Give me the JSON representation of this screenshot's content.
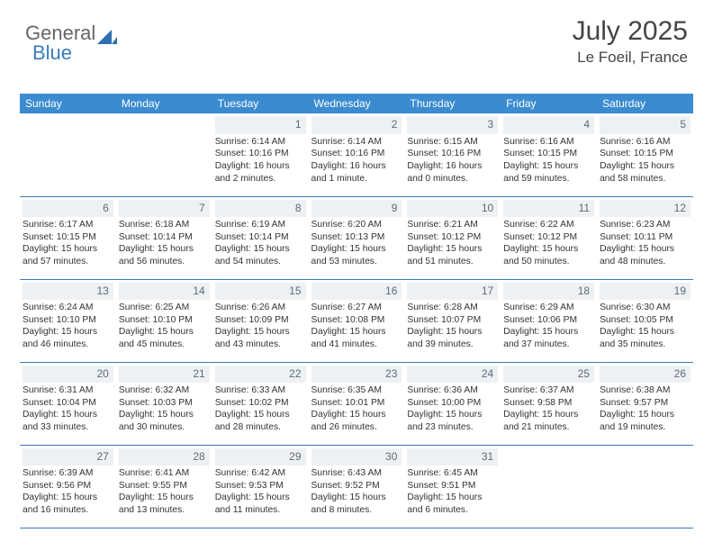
{
  "logo": {
    "part1": "General",
    "part2": "Blue"
  },
  "title": "July 2025",
  "location": "Le Foeil, France",
  "colors": {
    "header_bg": "#3a8bd0",
    "header_text": "#ffffff",
    "daynum_bg": "#eef1f3",
    "daynum_text": "#5a6b7a",
    "text": "#333333",
    "border": "#3a7bbf",
    "logo_gray": "#666666",
    "logo_blue": "#3a7bbf"
  },
  "day_headers": [
    "Sunday",
    "Monday",
    "Tuesday",
    "Wednesday",
    "Thursday",
    "Friday",
    "Saturday"
  ],
  "weeks": [
    [
      null,
      null,
      {
        "n": "1",
        "sr": "6:14 AM",
        "ss": "10:16 PM",
        "dl": "16 hours and 2 minutes."
      },
      {
        "n": "2",
        "sr": "6:14 AM",
        "ss": "10:16 PM",
        "dl": "16 hours and 1 minute."
      },
      {
        "n": "3",
        "sr": "6:15 AM",
        "ss": "10:16 PM",
        "dl": "16 hours and 0 minutes."
      },
      {
        "n": "4",
        "sr": "6:16 AM",
        "ss": "10:15 PM",
        "dl": "15 hours and 59 minutes."
      },
      {
        "n": "5",
        "sr": "6:16 AM",
        "ss": "10:15 PM",
        "dl": "15 hours and 58 minutes."
      }
    ],
    [
      {
        "n": "6",
        "sr": "6:17 AM",
        "ss": "10:15 PM",
        "dl": "15 hours and 57 minutes."
      },
      {
        "n": "7",
        "sr": "6:18 AM",
        "ss": "10:14 PM",
        "dl": "15 hours and 56 minutes."
      },
      {
        "n": "8",
        "sr": "6:19 AM",
        "ss": "10:14 PM",
        "dl": "15 hours and 54 minutes."
      },
      {
        "n": "9",
        "sr": "6:20 AM",
        "ss": "10:13 PM",
        "dl": "15 hours and 53 minutes."
      },
      {
        "n": "10",
        "sr": "6:21 AM",
        "ss": "10:12 PM",
        "dl": "15 hours and 51 minutes."
      },
      {
        "n": "11",
        "sr": "6:22 AM",
        "ss": "10:12 PM",
        "dl": "15 hours and 50 minutes."
      },
      {
        "n": "12",
        "sr": "6:23 AM",
        "ss": "10:11 PM",
        "dl": "15 hours and 48 minutes."
      }
    ],
    [
      {
        "n": "13",
        "sr": "6:24 AM",
        "ss": "10:10 PM",
        "dl": "15 hours and 46 minutes."
      },
      {
        "n": "14",
        "sr": "6:25 AM",
        "ss": "10:10 PM",
        "dl": "15 hours and 45 minutes."
      },
      {
        "n": "15",
        "sr": "6:26 AM",
        "ss": "10:09 PM",
        "dl": "15 hours and 43 minutes."
      },
      {
        "n": "16",
        "sr": "6:27 AM",
        "ss": "10:08 PM",
        "dl": "15 hours and 41 minutes."
      },
      {
        "n": "17",
        "sr": "6:28 AM",
        "ss": "10:07 PM",
        "dl": "15 hours and 39 minutes."
      },
      {
        "n": "18",
        "sr": "6:29 AM",
        "ss": "10:06 PM",
        "dl": "15 hours and 37 minutes."
      },
      {
        "n": "19",
        "sr": "6:30 AM",
        "ss": "10:05 PM",
        "dl": "15 hours and 35 minutes."
      }
    ],
    [
      {
        "n": "20",
        "sr": "6:31 AM",
        "ss": "10:04 PM",
        "dl": "15 hours and 33 minutes."
      },
      {
        "n": "21",
        "sr": "6:32 AM",
        "ss": "10:03 PM",
        "dl": "15 hours and 30 minutes."
      },
      {
        "n": "22",
        "sr": "6:33 AM",
        "ss": "10:02 PM",
        "dl": "15 hours and 28 minutes."
      },
      {
        "n": "23",
        "sr": "6:35 AM",
        "ss": "10:01 PM",
        "dl": "15 hours and 26 minutes."
      },
      {
        "n": "24",
        "sr": "6:36 AM",
        "ss": "10:00 PM",
        "dl": "15 hours and 23 minutes."
      },
      {
        "n": "25",
        "sr": "6:37 AM",
        "ss": "9:58 PM",
        "dl": "15 hours and 21 minutes."
      },
      {
        "n": "26",
        "sr": "6:38 AM",
        "ss": "9:57 PM",
        "dl": "15 hours and 19 minutes."
      }
    ],
    [
      {
        "n": "27",
        "sr": "6:39 AM",
        "ss": "9:56 PM",
        "dl": "15 hours and 16 minutes."
      },
      {
        "n": "28",
        "sr": "6:41 AM",
        "ss": "9:55 PM",
        "dl": "15 hours and 13 minutes."
      },
      {
        "n": "29",
        "sr": "6:42 AM",
        "ss": "9:53 PM",
        "dl": "15 hours and 11 minutes."
      },
      {
        "n": "30",
        "sr": "6:43 AM",
        "ss": "9:52 PM",
        "dl": "15 hours and 8 minutes."
      },
      {
        "n": "31",
        "sr": "6:45 AM",
        "ss": "9:51 PM",
        "dl": "15 hours and 6 minutes."
      },
      null,
      null
    ]
  ],
  "labels": {
    "sunrise": "Sunrise: ",
    "sunset": "Sunset: ",
    "daylight": "Daylight: "
  }
}
